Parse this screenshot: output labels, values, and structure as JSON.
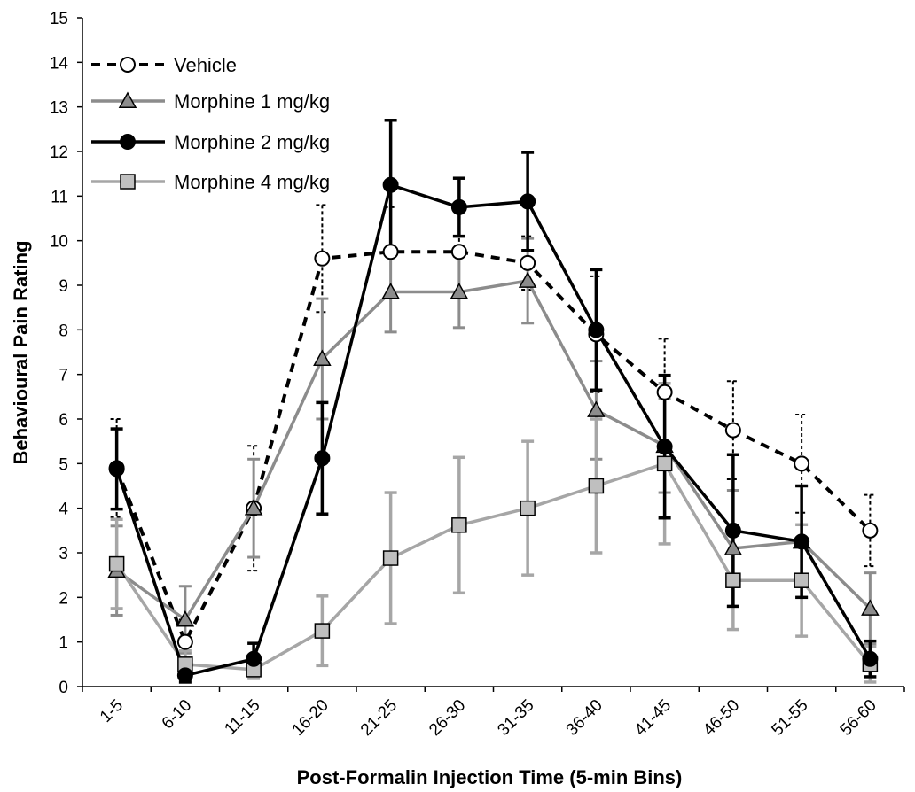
{
  "chart_data": {
    "type": "line",
    "title": "",
    "xlabel": "Post-Formalin Injection Time (5-min Bins)",
    "ylabel": "Behavioural Pain Rating",
    "ylim": [
      0,
      15
    ],
    "yticks": [
      0,
      1,
      2,
      3,
      4,
      5,
      6,
      7,
      8,
      9,
      10,
      11,
      12,
      13,
      14,
      15
    ],
    "categories": [
      "1-5",
      "6-10",
      "11-15",
      "16-20",
      "21-25",
      "26-30",
      "31-35",
      "36-40",
      "41-45",
      "46-50",
      "51-55",
      "56-60"
    ],
    "grid": false,
    "legend_position": "top-left",
    "series": [
      {
        "name": "Vehicle",
        "marker": "circle-open",
        "line_style": "dashed",
        "color": "#000000",
        "values": [
          4.9,
          1.0,
          4.0,
          9.6,
          9.75,
          9.75,
          9.5,
          7.9,
          6.6,
          5.75,
          5.0,
          3.5
        ],
        "error": [
          1.1,
          0.5,
          1.4,
          1.2,
          1.0,
          1.0,
          0.6,
          1.3,
          1.2,
          1.1,
          1.1,
          0.8
        ]
      },
      {
        "name": "Morphine 1 mg/kg",
        "marker": "triangle",
        "line_style": "solid",
        "color": "#8c8c8c",
        "values": [
          2.6,
          1.5,
          4.0,
          7.35,
          8.85,
          8.85,
          9.1,
          6.2,
          5.4,
          3.1,
          3.25,
          1.75
        ],
        "error": [
          1.0,
          0.75,
          1.1,
          1.35,
          0.9,
          0.8,
          0.95,
          1.1,
          1.05,
          1.3,
          1.25,
          0.8
        ]
      },
      {
        "name": "Morphine 2 mg/kg",
        "marker": "circle-filled",
        "line_style": "solid",
        "color": "#000000",
        "values": [
          4.88,
          0.25,
          0.62,
          5.12,
          11.25,
          10.75,
          10.88,
          8.0,
          5.38,
          3.5,
          3.25,
          0.62
        ],
        "error": [
          0.9,
          0.15,
          0.35,
          1.25,
          1.45,
          0.65,
          1.1,
          1.35,
          1.6,
          1.7,
          1.25,
          0.4
        ]
      },
      {
        "name": "Morphine 4 mg/kg",
        "marker": "square",
        "line_style": "solid",
        "color": "#a6a6a6",
        "values": [
          2.75,
          0.5,
          0.38,
          1.25,
          2.88,
          3.62,
          4.0,
          4.5,
          5.0,
          2.38,
          2.38,
          0.5
        ],
        "error": [
          1.0,
          0.3,
          0.2,
          0.78,
          1.47,
          1.52,
          1.5,
          1.5,
          1.8,
          1.1,
          1.25,
          0.4
        ]
      }
    ]
  }
}
